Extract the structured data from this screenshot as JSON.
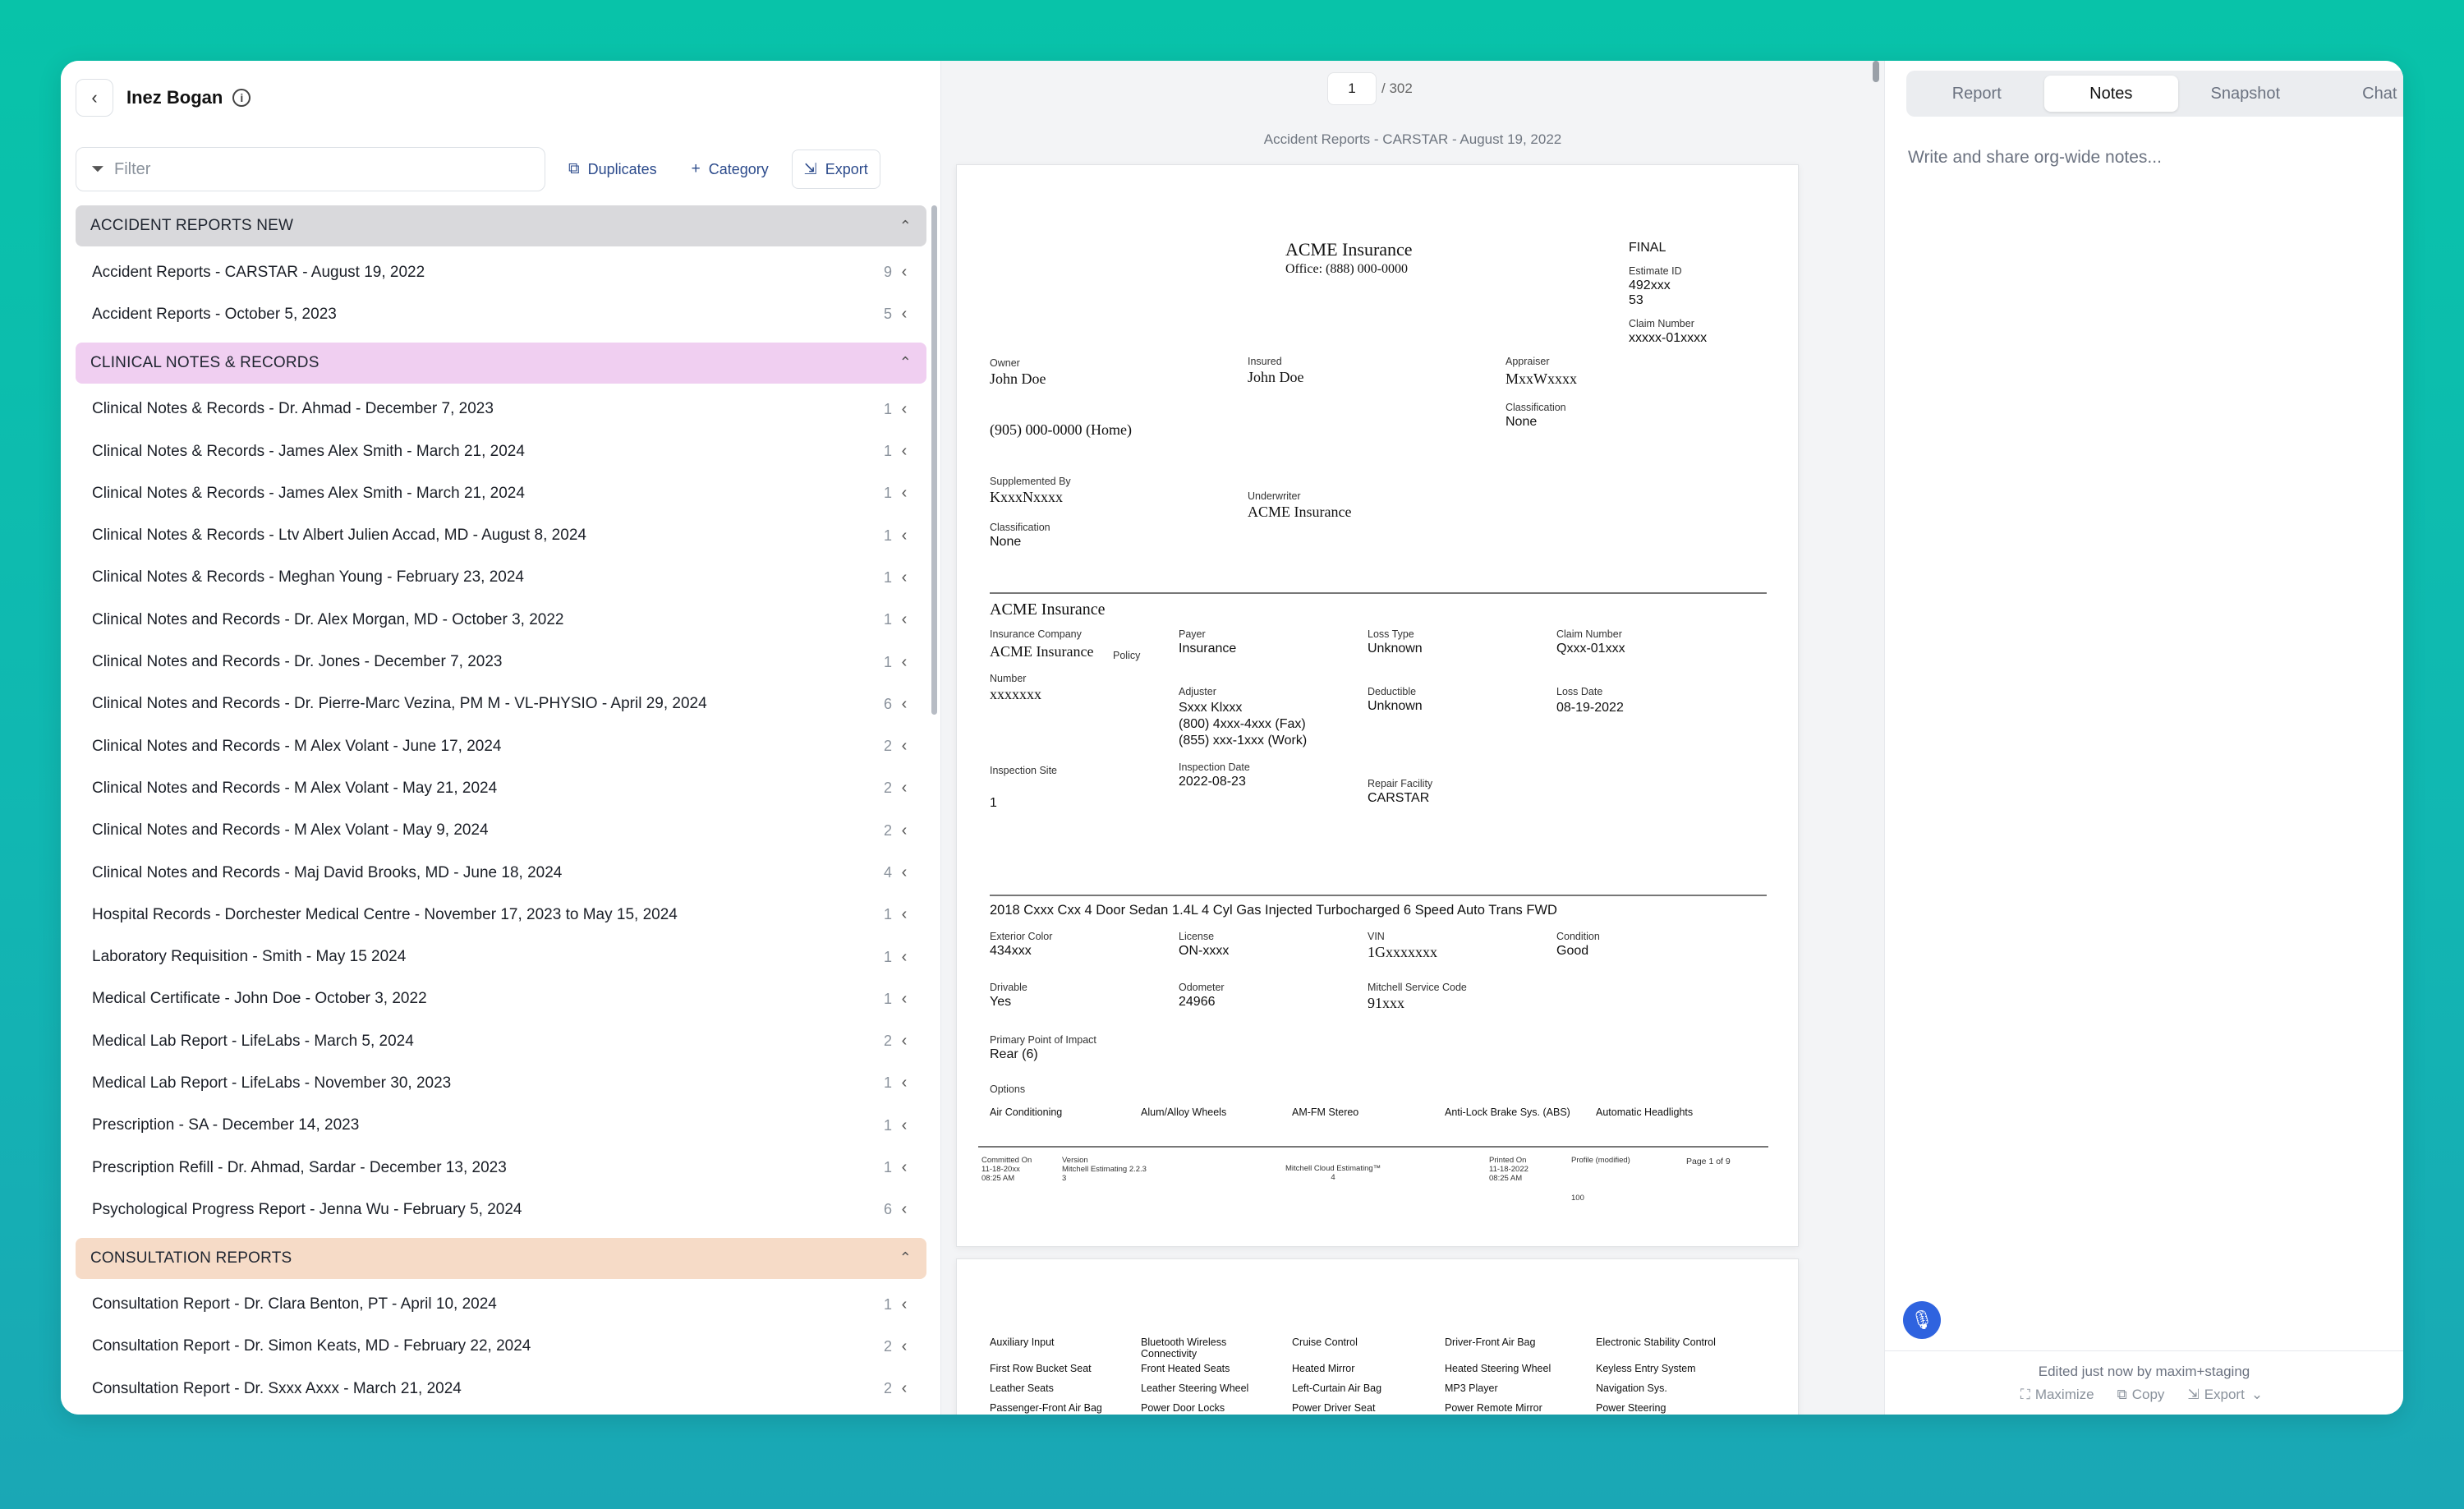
{
  "header": {
    "client_name": "Inez Bogan"
  },
  "toolbar": {
    "filter_placeholder": "Filter",
    "duplicates_label": "Duplicates",
    "category_label": "Category",
    "export_label": "Export"
  },
  "groups": [
    {
      "name": "ACCIDENT REPORTS NEW",
      "color": "#d9d9dc",
      "items": [
        {
          "title": "Accident Reports - CARSTAR - August 19, 2022",
          "count": "9"
        },
        {
          "title": "Accident Reports - October 5, 2023",
          "count": "5"
        }
      ]
    },
    {
      "name": "CLINICAL NOTES & RECORDS",
      "color": "#f0cff1",
      "items": [
        {
          "title": "Clinical Notes & Records - Dr. Ahmad - December 7, 2023",
          "count": "1"
        },
        {
          "title": "Clinical Notes & Records - James Alex Smith - March 21, 2024",
          "count": "1"
        },
        {
          "title": "Clinical Notes & Records - James Alex Smith - March 21, 2024",
          "count": "1"
        },
        {
          "title": "Clinical Notes & Records - Ltv Albert Julien Accad, MD - August 8, 2024",
          "count": "1"
        },
        {
          "title": "Clinical Notes & Records - Meghan Young - February 23, 2024",
          "count": "1"
        },
        {
          "title": "Clinical Notes and Records - Dr. Alex Morgan, MD - October 3, 2022",
          "count": "1"
        },
        {
          "title": "Clinical Notes and Records - Dr. Jones - December 7, 2023",
          "count": "1"
        },
        {
          "title": "Clinical Notes and Records - Dr. Pierre-Marc Vezina, PM M - VL-PHYSIO - April 29, 2024",
          "count": "6"
        },
        {
          "title": "Clinical Notes and Records - M Alex Volant - June 17, 2024",
          "count": "2"
        },
        {
          "title": "Clinical Notes and Records - M Alex Volant - May 21, 2024",
          "count": "2"
        },
        {
          "title": "Clinical Notes and Records - M Alex Volant - May 9, 2024",
          "count": "2"
        },
        {
          "title": "Clinical Notes and Records - Maj David Brooks, MD - June 18, 2024",
          "count": "4"
        },
        {
          "title": "Hospital Records - Dorchester Medical Centre - November 17, 2023 to May 15, 2024",
          "count": "1"
        },
        {
          "title": "Laboratory Requisition - Smith - May 15 2024",
          "count": "1"
        },
        {
          "title": "Medical Certificate - John Doe - October 3, 2022",
          "count": "1"
        },
        {
          "title": "Medical Lab Report - LifeLabs - March 5, 2024",
          "count": "2"
        },
        {
          "title": "Medical Lab Report - LifeLabs - November 30, 2023",
          "count": "1"
        },
        {
          "title": "Prescription - SA - December 14, 2023",
          "count": "1"
        },
        {
          "title": "Prescription Refill - Dr. Ahmad, Sardar - December 13, 2023",
          "count": "1"
        },
        {
          "title": "Psychological Progress Report - Jenna Wu - February 5, 2024",
          "count": "6"
        }
      ]
    },
    {
      "name": "CONSULTATION REPORTS",
      "color": "#f6dbc7",
      "items": [
        {
          "title": "Consultation Report - Dr. Clara Benton, PT - April 10, 2024",
          "count": "1"
        },
        {
          "title": "Consultation Report - Dr. Simon Keats, MD - February 22, 2024",
          "count": "2"
        },
        {
          "title": "Consultation Report - Dr. Sxxx Axxx - March 21, 2024",
          "count": "2"
        }
      ]
    }
  ],
  "viewer": {
    "current_page": "1",
    "total_pages": "/ 302",
    "doc_caption": "Accident Reports - CARSTAR - August 19, 2022"
  },
  "document": {
    "company": "ACME Insurance",
    "office": "Office: (888) 000-0000",
    "status": "FINAL",
    "estimate_id_label": "Estimate ID",
    "estimate_id_value": "492xxx",
    "estimate_id_value2": "53",
    "claim_number_label": "Claim Number",
    "claim_number_value": "xxxxx-01xxxx",
    "owner_label": "Owner",
    "owner_value": "John Doe",
    "insured_label": "Insured",
    "insured_value": "John Doe",
    "appraiser_label": "Appraiser",
    "appraiser_value": "MxxWxxxx",
    "classification_label": "Classification",
    "classification_value": "None",
    "phone": "(905) 000-0000 (Home)",
    "supplemented_label": "Supplemented By",
    "supplemented_value": "KxxxNxxxx",
    "underwriter_label": "Underwriter",
    "underwriter_value": "ACME Insurance",
    "classification2_label": "Classification",
    "classification2_value": "None",
    "section2_title": "ACME Insurance",
    "ins_company_label": "Insurance Company",
    "ins_company_value": "ACME Insurance",
    "policy_label": "Policy",
    "number_label": "Number",
    "number_value": "xxxxxxx",
    "payer_label": "Payer",
    "payer_value": "Insurance",
    "loss_type_label": "Loss Type",
    "loss_type_value": "Unknown",
    "claim_number2_label": "Claim Number",
    "claim_number2_value": "Qxxx-01xxx",
    "adjuster_label": "Adjuster",
    "adjuster_line1": "Sxxx Klxxx",
    "adjuster_line2": "(800) 4xxx-4xxx (Fax)",
    "adjuster_line3": "(855) xxx-1xxx (Work)",
    "deductible_label": "Deductible",
    "deductible_value": "Unknown",
    "loss_date_label": "Loss Date",
    "loss_date_value": "08-19-2022",
    "inspection_site_label": "Inspection Site",
    "inspection_site_value": "1",
    "inspection_date_label": "Inspection Date",
    "inspection_date_value": "2022-08-23",
    "repair_facility_label": "Repair Facility",
    "repair_facility_value": "CARSTAR",
    "vehicle_title": "2018 Cxxx Cxx 4 Door Sedan 1.4L 4 Cyl Gas Injected Turbocharged 6 Speed Auto Trans FWD",
    "ext_color_label": "Exterior Color",
    "ext_color_value": "434xxx",
    "license_label": "License",
    "license_value": "ON-xxxx",
    "vin_label": "VIN",
    "vin_value": "1Gxxxxxxx",
    "condition_label": "Condition",
    "condition_value": "Good",
    "drivable_label": "Drivable",
    "drivable_value": "Yes",
    "odometer_label": "Odometer",
    "odometer_value": "24966",
    "mitchell_label": "Mitchell Service Code",
    "mitchell_value": "91xxx",
    "impact_label": "Primary Point of Impact",
    "impact_value": "Rear (6)",
    "options_label": "Options",
    "options": [
      "Air Conditioning",
      "Alum/Alloy Wheels",
      "AM-FM Stereo",
      "Anti-Lock Brake Sys. (ABS)",
      "Automatic Headlights"
    ],
    "foot_committed_label": "Committed On",
    "foot_committed_value": "11-18-20xx",
    "foot_committed_time": "08:25 AM",
    "foot_version_label": "Version",
    "foot_version_value": "Mitchell Estimating 2.2.3",
    "foot_version_value2": "3",
    "foot_mcloud": "Mitchell Cloud Estimating™",
    "foot_mcloud2": "4",
    "foot_printed_label": "Printed On",
    "foot_printed_value": "11-18-2022",
    "foot_printed_time": "08:25 AM",
    "foot_profile_label": "Profile (modified)",
    "foot_page": "Page 1 of 9",
    "foot_num": "100",
    "page2_options": [
      [
        "Auxiliary Input",
        "Bluetooth Wireless Connectivity",
        "Cruise Control",
        "Driver-Front Air Bag",
        "Electronic Stability Control"
      ],
      [
        "First Row Bucket Seat",
        "Front Heated Seats",
        "Heated Mirror",
        "Heated Steering Wheel",
        "Keyless Entry System"
      ],
      [
        "Leather Seats",
        "Leather Steering Wheel",
        "Left-Curtain Air Bag",
        "MP3 Player",
        "Navigation Sys."
      ],
      [
        "Passenger-Front Air Bag",
        "Power Door Locks",
        "Power Driver Seat",
        "Power Remote Mirror",
        "Power Steering"
      ]
    ]
  },
  "right": {
    "tabs": [
      "Report",
      "Notes",
      "Snapshot",
      "Chat"
    ],
    "active_tab": "Notes",
    "notes_placeholder": "Write and share org-wide notes...",
    "edited_text": "Edited just now by maxim+staging",
    "maximize_label": "Maximize",
    "copy_label": "Copy",
    "export_label": "Export"
  },
  "icons": {
    "back": "chevron-left-icon",
    "info": "info-icon",
    "filter": "filter-icon",
    "duplicates": "copy-icon",
    "category": "plus-icon",
    "export": "export-icon",
    "mic": "microphone-icon"
  },
  "colors": {
    "accent": "#2f63df",
    "link": "#2b4a8b"
  }
}
